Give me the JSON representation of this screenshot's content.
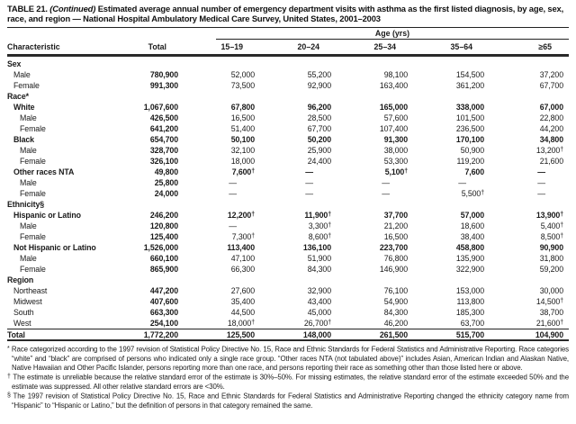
{
  "title": {
    "prefix": "TABLE 21. ",
    "continued": "(Continued)",
    "text": " Estimated average annual number of emergency department visits with asthma as the first listed diagnosis, by age, sex, race, and region — National Hospital Ambulatory Medical Care Survey, United States, 2001–2003"
  },
  "header": {
    "characteristic": "Characteristic",
    "total": "Total",
    "age_label": "Age (yrs)",
    "age_columns": [
      "15–19",
      "20–24",
      "25–34",
      "35–64",
      "≥65"
    ]
  },
  "rows": [
    {
      "label": "Sex",
      "indent": 0,
      "section": true,
      "values": []
    },
    {
      "label": "Male",
      "indent": 1,
      "values": [
        "780,900",
        "52,000",
        "55,200",
        "98,100",
        "154,500",
        "37,200"
      ]
    },
    {
      "label": "Female",
      "indent": 1,
      "values": [
        "991,300",
        "73,500",
        "92,900",
        "163,400",
        "361,200",
        "67,700"
      ]
    },
    {
      "label": "Race*",
      "indent": 0,
      "section": true,
      "values": []
    },
    {
      "label": "White",
      "indent": 1,
      "bold": true,
      "values": [
        "1,067,600",
        "67,800",
        "96,200",
        "165,000",
        "338,000",
        "67,000"
      ]
    },
    {
      "label": "Male",
      "indent": 2,
      "values": [
        "426,500",
        "16,500",
        "28,500",
        "57,600",
        "101,500",
        "22,800"
      ]
    },
    {
      "label": "Female",
      "indent": 2,
      "values": [
        "641,200",
        "51,400",
        "67,700",
        "107,400",
        "236,500",
        "44,200"
      ]
    },
    {
      "label": "Black",
      "indent": 1,
      "bold": true,
      "values": [
        "654,700",
        "50,100",
        "50,200",
        "91,300",
        "170,100",
        "34,800"
      ]
    },
    {
      "label": "Male",
      "indent": 2,
      "values": [
        "328,700",
        "32,100",
        "25,900",
        "38,000",
        "50,900",
        "13,200†"
      ]
    },
    {
      "label": "Female",
      "indent": 2,
      "values": [
        "326,100",
        "18,000",
        "24,400",
        "53,300",
        "119,200",
        "21,600"
      ]
    },
    {
      "label": "Other races NTA",
      "indent": 1,
      "bold": true,
      "values": [
        "49,800",
        "7,600†",
        "—",
        "5,100†",
        "7,600",
        "—"
      ]
    },
    {
      "label": "Male",
      "indent": 2,
      "values": [
        "25,800",
        "—",
        "—",
        "—",
        "—",
        "—"
      ]
    },
    {
      "label": "Female",
      "indent": 2,
      "values": [
        "24,000",
        "—",
        "—",
        "—",
        "5,500†",
        "—"
      ]
    },
    {
      "label": "Ethnicity§",
      "indent": 0,
      "section": true,
      "values": []
    },
    {
      "label": "Hispanic or Latino",
      "indent": 1,
      "bold": true,
      "values": [
        "246,200",
        "12,200†",
        "11,900†",
        "37,700",
        "57,000",
        "13,900†"
      ]
    },
    {
      "label": "Male",
      "indent": 2,
      "values": [
        "120,800",
        "—",
        "3,300†",
        "21,200",
        "18,600",
        "5,400†"
      ]
    },
    {
      "label": "Female",
      "indent": 2,
      "values": [
        "125,400",
        "7,300†",
        "8,600†",
        "16,500",
        "38,400",
        "8,500†"
      ]
    },
    {
      "label": "Not Hispanic or Latino",
      "indent": 1,
      "bold": true,
      "values": [
        "1,526,000",
        "113,400",
        "136,100",
        "223,700",
        "458,800",
        "90,900"
      ]
    },
    {
      "label": "Male",
      "indent": 2,
      "values": [
        "660,100",
        "47,100",
        "51,900",
        "76,800",
        "135,900",
        "31,800"
      ]
    },
    {
      "label": "Female",
      "indent": 2,
      "values": [
        "865,900",
        "66,300",
        "84,300",
        "146,900",
        "322,900",
        "59,200"
      ]
    },
    {
      "label": "Region",
      "indent": 0,
      "section": true,
      "values": []
    },
    {
      "label": "Northeast",
      "indent": 1,
      "values": [
        "447,200",
        "27,600",
        "32,900",
        "76,100",
        "153,000",
        "30,000"
      ]
    },
    {
      "label": "Midwest",
      "indent": 1,
      "values": [
        "407,600",
        "35,400",
        "43,400",
        "54,900",
        "113,800",
        "14,500†"
      ]
    },
    {
      "label": "South",
      "indent": 1,
      "values": [
        "663,300",
        "44,500",
        "45,000",
        "84,300",
        "185,300",
        "38,700"
      ]
    },
    {
      "label": "West",
      "indent": 1,
      "values": [
        "254,100",
        "18,000†",
        "26,700†",
        "46,200",
        "63,700",
        "21,600†"
      ]
    },
    {
      "label": "Total",
      "indent": 0,
      "total_row": true,
      "values": [
        "1,772,200",
        "125,500",
        "148,000",
        "261,500",
        "515,700",
        "104,900"
      ]
    }
  ],
  "footnotes": [
    {
      "marker": "*",
      "text": "Race categorized according to the 1997 revision of Statistical Policy Directive No. 15, Race and Ethnic Standards for Federal Statistics and Administrative Reporting. Race categories “white” and “black” are comprised of persons who indicated only a single race group. “Other races NTA (not tabulated above)” includes Asian, American Indian and Alaskan Native, Native Hawaiian and Other Pacific Islander, persons reporting more than one race, and persons reporting their race as something other than those listed here or above."
    },
    {
      "marker": "†",
      "text": "The estimate is unreliable because the relative standard error of the estimate is 30%–50%. For missing estimates, the relative standard error of the estimate exceeded 50% and the estimate was suppressed. All other relative standard errors are <30%."
    },
    {
      "marker": "§",
      "text": "The 1997 revision of Statistical Policy Directive No. 15, Race and Ethnic Standards for Federal Statistics and Administrative Reporting changed the ethnicity category name from “Hispanic” to “Hispanic or Latino,” but the definition of persons in that category remained the same."
    }
  ]
}
